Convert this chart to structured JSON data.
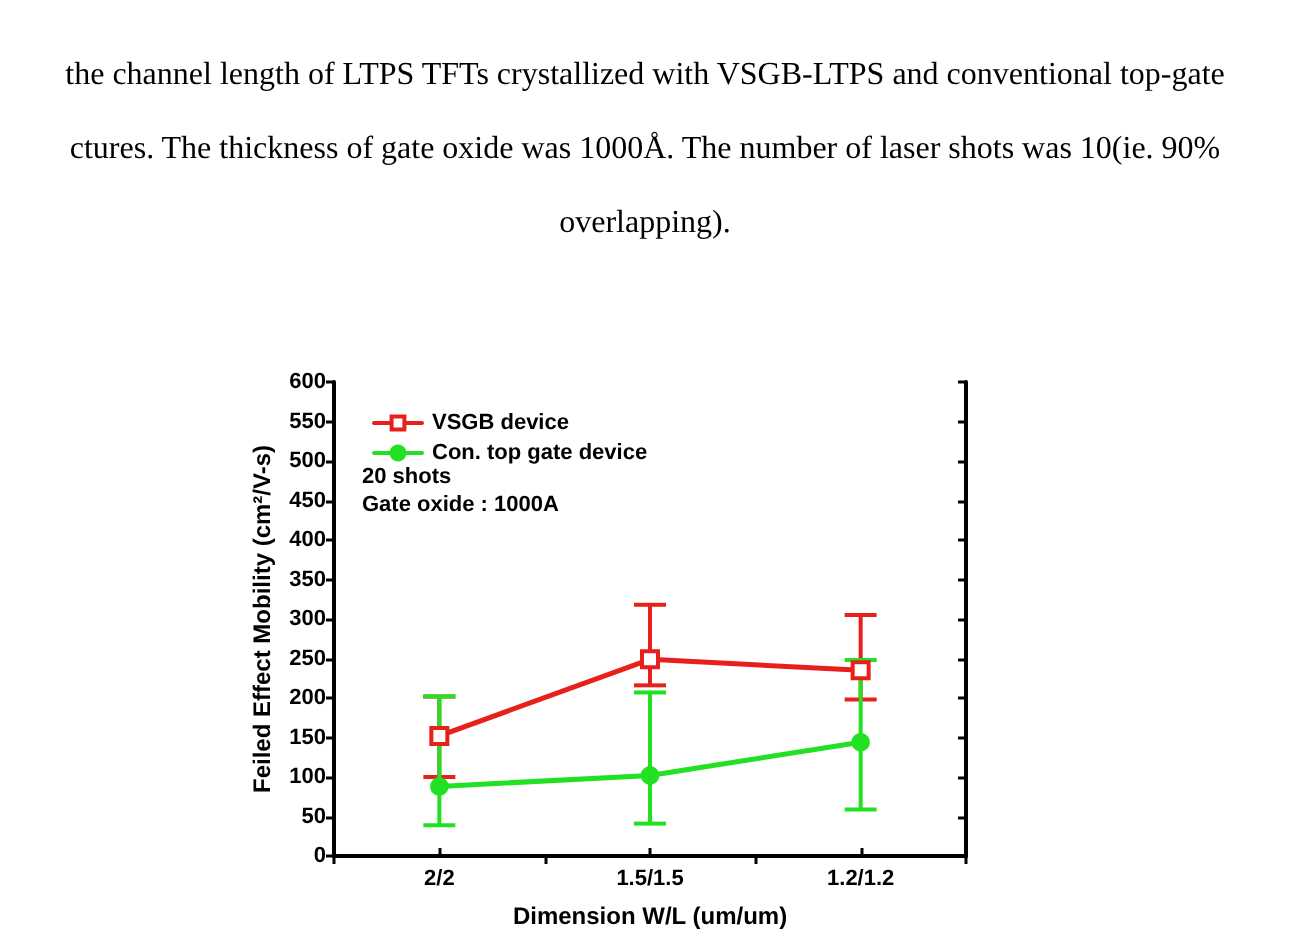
{
  "chart_data": {
    "type": "line",
    "title": "the channel length of LTPS TFTs crystallized with VSGB-LTPS and conventional top-gate\nctures. The thickness of gate oxide was 1000Å. The number of laser shots was 10(ie. 90%\noverlapping).",
    "xlabel": "Dimension W/L (um/um)",
    "ylabel": "Feiled Effect Mobility (cm²/V-s)",
    "categories": [
      "2/2",
      "1.5/1.5",
      "1.2/1.2"
    ],
    "series": [
      {
        "name": "VSGB device",
        "color": "#e8201c",
        "marker": "square",
        "values": [
          152,
          249,
          235
        ],
        "errors": [
          [
            100,
            202
          ],
          [
            216,
            318
          ],
          [
            198,
            305
          ]
        ]
      },
      {
        "name": "Con. top gate device",
        "color": "#22e022",
        "marker": "circle",
        "values": [
          88,
          102,
          144
        ],
        "errors": [
          [
            39,
            202
          ],
          [
            41,
            207
          ],
          [
            59,
            248
          ]
        ]
      }
    ],
    "ylim": [
      0,
      600
    ],
    "yticks": [
      0,
      50,
      100,
      150,
      200,
      250,
      300,
      350,
      400,
      450,
      500,
      550,
      600
    ],
    "legend": "top left",
    "line_style": "solid",
    "annotations": [
      "20 shots",
      "Gate oxide : 1000A"
    ]
  }
}
